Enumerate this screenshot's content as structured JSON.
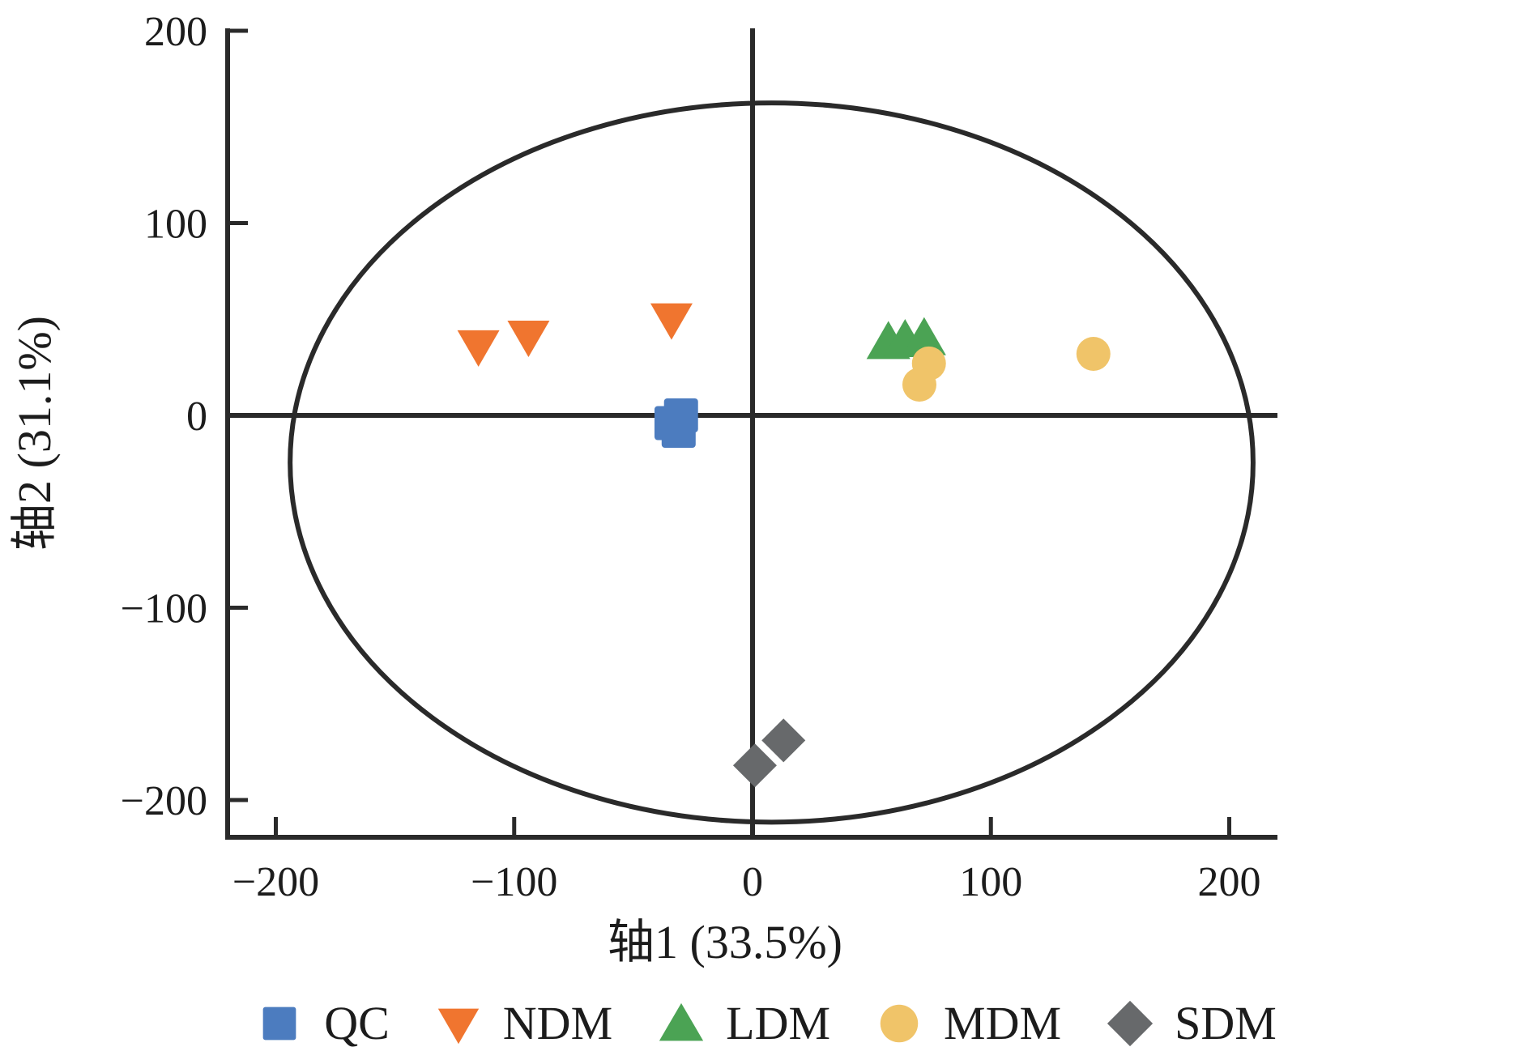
{
  "figure": {
    "background": "#ffffff",
    "axis_color": "#2a2a2a",
    "text_color": "#1c1c1c"
  },
  "chart_data": {
    "type": "scatter",
    "title": "",
    "xlabel": "轴1 (33.5%)",
    "ylabel": "轴2 (31.1%)",
    "xlim": [
      -220,
      220
    ],
    "ylim": [
      -220,
      200
    ],
    "grid": false,
    "zero_lines": true,
    "x_ticks": {
      "values": [
        -200,
        -100,
        0,
        100,
        200
      ],
      "labels": [
        "−200",
        "−100",
        "0",
        "100",
        "200"
      ]
    },
    "y_ticks": {
      "values": [
        200,
        100,
        0,
        -100,
        -200
      ],
      "labels": [
        "200",
        "100",
        "0",
        "−100",
        "−200"
      ]
    },
    "confidence_ellipse": {
      "center_x": 8,
      "center_y": -24.5,
      "radius_x": 202,
      "radius_y": 187
    },
    "series": [
      {
        "name": "QC",
        "marker": "square",
        "color": "#4c7cbf",
        "points": [
          [
            -30,
            0
          ],
          [
            -34,
            -4
          ],
          [
            -31,
            -8
          ]
        ]
      },
      {
        "name": "NDM",
        "marker": "triangle-down",
        "color": "#f0752f",
        "points": [
          [
            -115,
            35
          ],
          [
            -94,
            40
          ],
          [
            -34,
            49
          ]
        ]
      },
      {
        "name": "LDM",
        "marker": "triangle-up",
        "color": "#4ba354",
        "points": [
          [
            57,
            39
          ],
          [
            64,
            40
          ],
          [
            72,
            41
          ]
        ]
      },
      {
        "name": "MDM",
        "marker": "circle",
        "color": "#f0c469",
        "points": [
          [
            74,
            27
          ],
          [
            70,
            16
          ],
          [
            143,
            32
          ]
        ]
      },
      {
        "name": "SDM",
        "marker": "diamond",
        "color": "#67696b",
        "points": [
          [
            1,
            -182
          ],
          [
            13,
            -169
          ]
        ]
      }
    ],
    "legend_position": "bottom"
  },
  "legend": {
    "items": [
      {
        "label": "QC",
        "marker": "square",
        "color": "#4c7cbf"
      },
      {
        "label": "NDM",
        "marker": "triangle-down",
        "color": "#f0752f"
      },
      {
        "label": "LDM",
        "marker": "triangle-up",
        "color": "#4ba354"
      },
      {
        "label": "MDM",
        "marker": "circle",
        "color": "#f0c469"
      },
      {
        "label": "SDM",
        "marker": "diamond",
        "color": "#67696b"
      }
    ]
  }
}
